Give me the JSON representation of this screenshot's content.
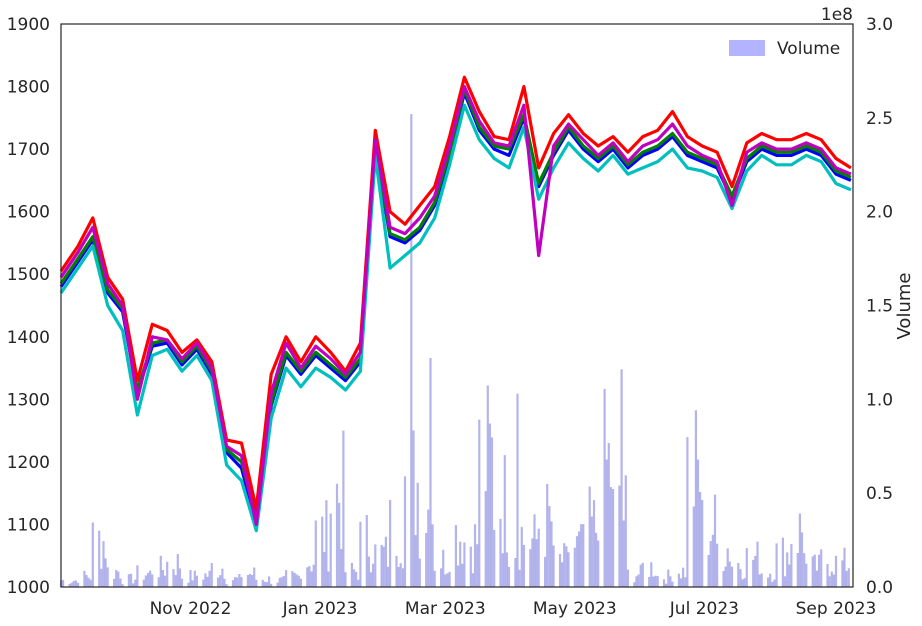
{
  "chart_data": {
    "type": "line",
    "title": "",
    "xlabel": "",
    "ylabel_left": "",
    "ylabel_right": "Volume",
    "right_axis_multiplier": "1e8",
    "x_tick_labels": [
      "Nov 2022",
      "Jan 2023",
      "Mar 2023",
      "May 2023",
      "Jul 2023",
      "Sep 2023"
    ],
    "y_ticks_left": [
      "1000",
      "1100",
      "1200",
      "1300",
      "1400",
      "1500",
      "1600",
      "1700",
      "1800",
      "1900"
    ],
    "y_ticks_right": [
      "0.0",
      "0.5",
      "1.0",
      "1.5",
      "2.0",
      "2.5",
      "3.0"
    ],
    "ylim_left": [
      1000,
      1900
    ],
    "ylim_right": [
      0,
      3.0
    ],
    "legend": {
      "label": "Volume",
      "position": "top-right"
    },
    "grid": false,
    "x": [
      "2022-09-01",
      "2022-09-09",
      "2022-09-16",
      "2022-09-23",
      "2022-09-30",
      "2022-10-07",
      "2022-10-14",
      "2022-10-21",
      "2022-10-28",
      "2022-11-04",
      "2022-11-11",
      "2022-11-18",
      "2022-11-25",
      "2022-12-02",
      "2022-12-09",
      "2022-12-16",
      "2022-12-23",
      "2022-12-30",
      "2023-01-06",
      "2023-01-13",
      "2023-01-20",
      "2023-01-27",
      "2023-02-03",
      "2023-02-10",
      "2023-02-17",
      "2023-02-24",
      "2023-03-03",
      "2023-03-10",
      "2023-03-17",
      "2023-03-24",
      "2023-03-31",
      "2023-04-07",
      "2023-04-14",
      "2023-04-21",
      "2023-04-28",
      "2023-05-05",
      "2023-05-12",
      "2023-05-19",
      "2023-05-26",
      "2023-06-02",
      "2023-06-09",
      "2023-06-16",
      "2023-06-23",
      "2023-06-30",
      "2023-07-07",
      "2023-07-14",
      "2023-07-21",
      "2023-07-28",
      "2023-08-04",
      "2023-08-11",
      "2023-08-18",
      "2023-08-25",
      "2023-09-01",
      "2023-09-08"
    ],
    "series": [
      {
        "color": "#0000ff",
        "values": [
          1480,
          1520,
          1555,
          1470,
          1440,
          1310,
          1385,
          1390,
          1355,
          1380,
          1340,
          1215,
          1190,
          1100,
          1290,
          1370,
          1340,
          1370,
          1350,
          1330,
          1360,
          1700,
          1560,
          1550,
          1570,
          1610,
          1690,
          1790,
          1730,
          1700,
          1690,
          1750,
          1640,
          1690,
          1730,
          1700,
          1680,
          1700,
          1670,
          1690,
          1700,
          1720,
          1690,
          1680,
          1670,
          1620,
          1680,
          1700,
          1690,
          1690,
          1700,
          1690,
          1660,
          1650
        ]
      },
      {
        "color": "#008000",
        "values": [
          1485,
          1525,
          1560,
          1475,
          1445,
          1315,
          1390,
          1395,
          1360,
          1385,
          1345,
          1220,
          1200,
          1110,
          1295,
          1375,
          1345,
          1375,
          1355,
          1335,
          1365,
          1710,
          1565,
          1555,
          1575,
          1615,
          1695,
          1795,
          1735,
          1705,
          1700,
          1755,
          1645,
          1695,
          1735,
          1705,
          1685,
          1705,
          1675,
          1695,
          1705,
          1725,
          1695,
          1685,
          1675,
          1625,
          1685,
          1705,
          1695,
          1695,
          1705,
          1695,
          1665,
          1655
        ]
      },
      {
        "color": "#ff0000",
        "values": [
          1505,
          1545,
          1590,
          1495,
          1460,
          1330,
          1420,
          1410,
          1375,
          1395,
          1360,
          1235,
          1230,
          1125,
          1340,
          1400,
          1360,
          1400,
          1375,
          1345,
          1390,
          1730,
          1600,
          1580,
          1610,
          1640,
          1720,
          1815,
          1760,
          1720,
          1715,
          1800,
          1670,
          1725,
          1755,
          1725,
          1705,
          1720,
          1695,
          1720,
          1730,
          1760,
          1720,
          1705,
          1695,
          1640,
          1710,
          1725,
          1715,
          1715,
          1725,
          1715,
          1685,
          1670
        ]
      },
      {
        "color": "#00bfbf",
        "values": [
          1470,
          1510,
          1545,
          1450,
          1410,
          1275,
          1370,
          1380,
          1345,
          1370,
          1330,
          1195,
          1170,
          1090,
          1270,
          1350,
          1320,
          1350,
          1335,
          1315,
          1345,
          1690,
          1510,
          1530,
          1550,
          1590,
          1675,
          1770,
          1715,
          1685,
          1670,
          1735,
          1620,
          1670,
          1710,
          1685,
          1665,
          1690,
          1660,
          1670,
          1680,
          1700,
          1670,
          1665,
          1655,
          1605,
          1665,
          1690,
          1675,
          1675,
          1690,
          1680,
          1645,
          1635
        ]
      },
      {
        "color": "#bf00bf",
        "values": [
          1495,
          1535,
          1575,
          1485,
          1450,
          1300,
          1400,
          1395,
          1365,
          1390,
          1350,
          1225,
          1210,
          1100,
          1310,
          1390,
          1350,
          1385,
          1365,
          1340,
          1375,
          1715,
          1575,
          1565,
          1590,
          1625,
          1705,
          1800,
          1745,
          1710,
          1705,
          1770,
          1530,
          1705,
          1740,
          1715,
          1690,
          1710,
          1680,
          1705,
          1715,
          1740,
          1705,
          1690,
          1680,
          1610,
          1695,
          1710,
          1700,
          1700,
          1710,
          1700,
          1670,
          1660
        ]
      }
    ],
    "volume": {
      "name": "Volume",
      "color": "#7777dd",
      "values": [
        0.05,
        0.08,
        0.35,
        0.12,
        0.06,
        0.1,
        0.14,
        0.18,
        0.08,
        0.09,
        0.15,
        0.06,
        0.1,
        0.06,
        0.05,
        0.08,
        0.2,
        0.4,
        0.7,
        0.12,
        0.35,
        0.25,
        0.45,
        0.8,
        0.6,
        0.2,
        0.4,
        0.35,
        0.95,
        0.65,
        0.4,
        0.35,
        0.5,
        0.2,
        0.3,
        0.45,
        0.9,
        0.55,
        0.1,
        0.15,
        0.08,
        0.12,
        0.85,
        0.45,
        0.3,
        0.18,
        0.22,
        0.12,
        0.25,
        0.42,
        0.15,
        0.2,
        0.18,
        0.22
      ],
      "peaks": [
        {
          "x": "2023-02-13",
          "value": 2.52
        },
        {
          "x": "2023-02-22",
          "value": 1.22
        },
        {
          "x": "2023-04-04",
          "value": 1.03
        },
        {
          "x": "2023-05-23",
          "value": 1.16
        }
      ]
    }
  }
}
